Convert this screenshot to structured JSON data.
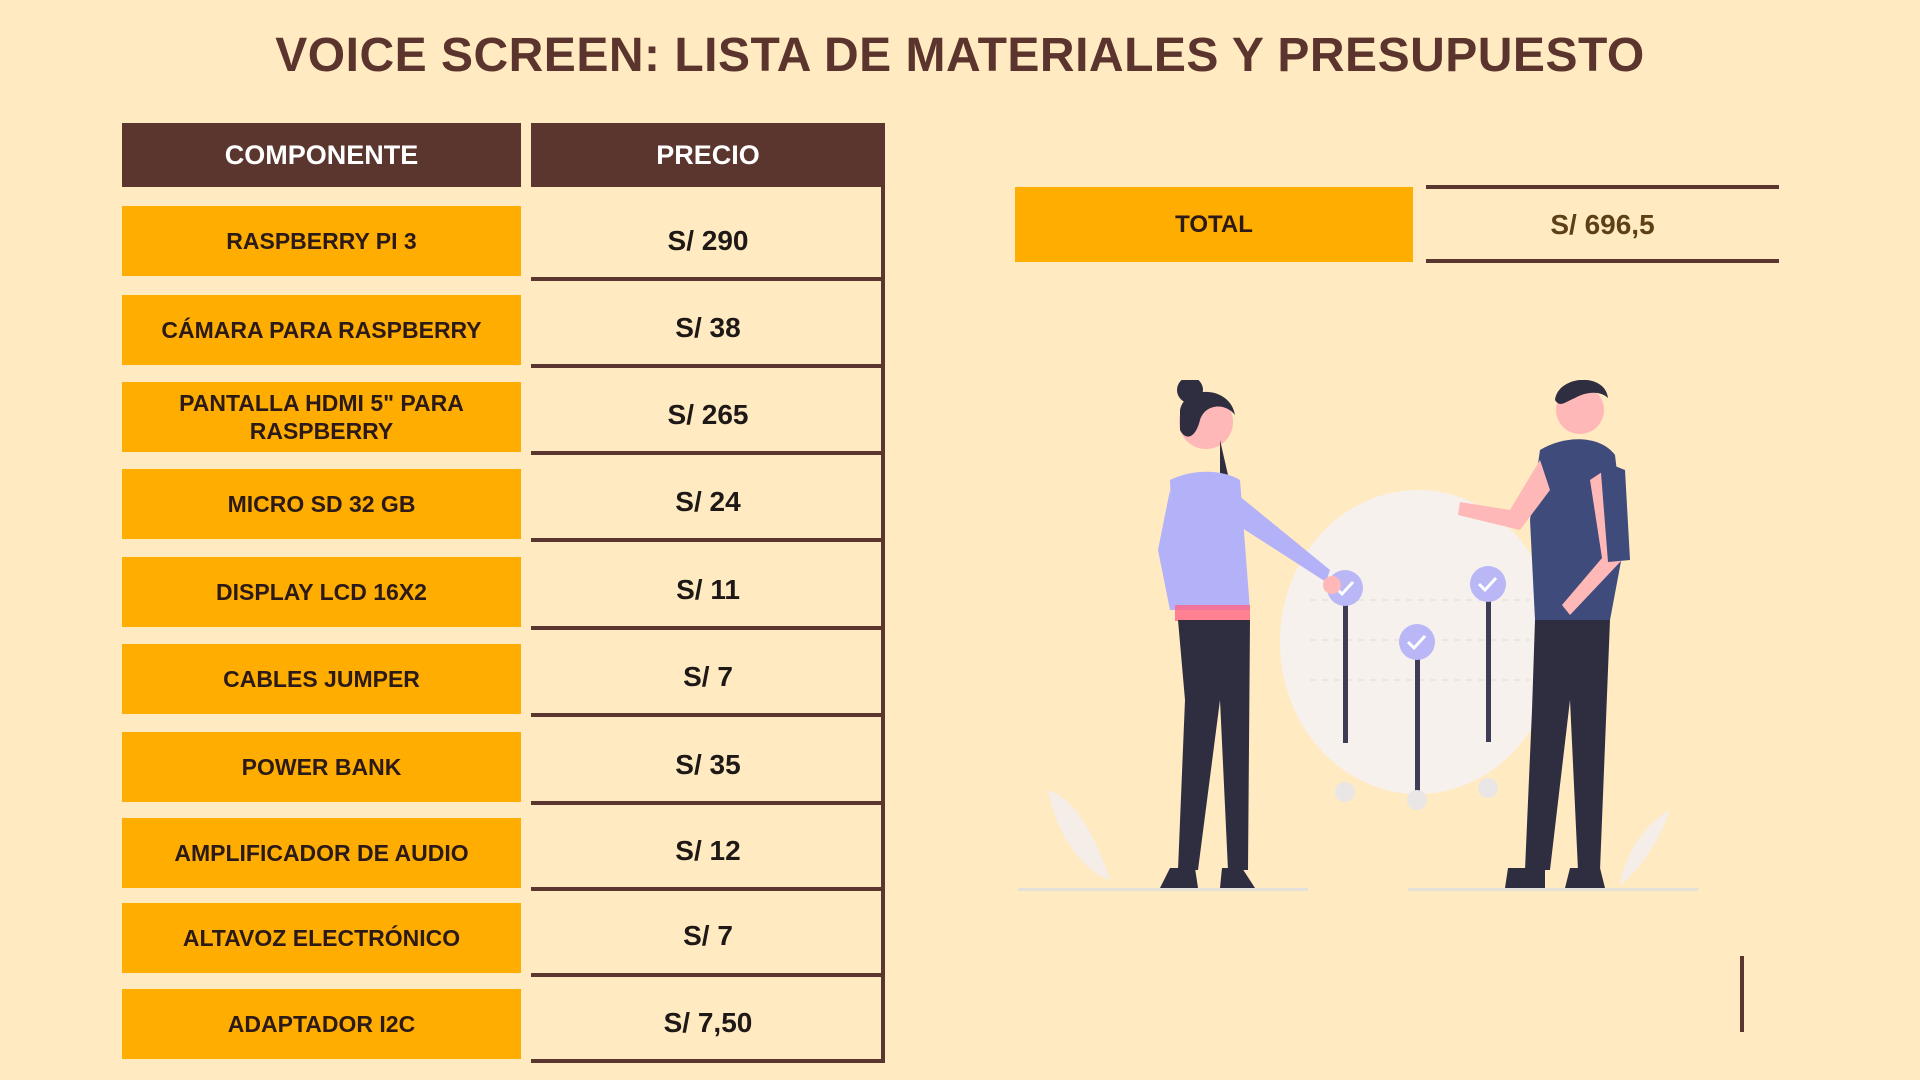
{
  "title": "VOICE SCREEN: LISTA DE MATERIALES Y PRESUPUESTO",
  "table": {
    "header_component": "COMPONENTE",
    "header_price": "PRECIO",
    "rows": [
      {
        "component": "RASPBERRY PI 3",
        "price": "S/ 290"
      },
      {
        "component": "CÁMARA PARA RASPBERRY",
        "price": "S/ 38"
      },
      {
        "component": "PANTALLA HDMI 5\" PARA RASPBERRY",
        "price": "S/ 265"
      },
      {
        "component": "MICRO SD 32 GB",
        "price": "S/ 24"
      },
      {
        "component": "DISPLAY LCD 16X2",
        "price": "S/ 11"
      },
      {
        "component": "CABLES JUMPER",
        "price": "S/ 7"
      },
      {
        "component": "POWER BANK",
        "price": "S/ 35"
      },
      {
        "component": "AMPLIFICADOR DE AUDIO",
        "price": "S/ 12"
      },
      {
        "component": "ALTAVOZ ELECTRÓNICO",
        "price": "S/ 7"
      },
      {
        "component": "ADAPTADOR I2C",
        "price": "S/ 7,50"
      }
    ]
  },
  "total": {
    "label": "TOTAL",
    "value": "S/ 696,5"
  },
  "colors": {
    "background": "#ffeac1",
    "header": "#5a362e",
    "accent": "#ffad00",
    "title": "#5a342d"
  },
  "illustration": {
    "icon": "people-checklist-illustration"
  }
}
